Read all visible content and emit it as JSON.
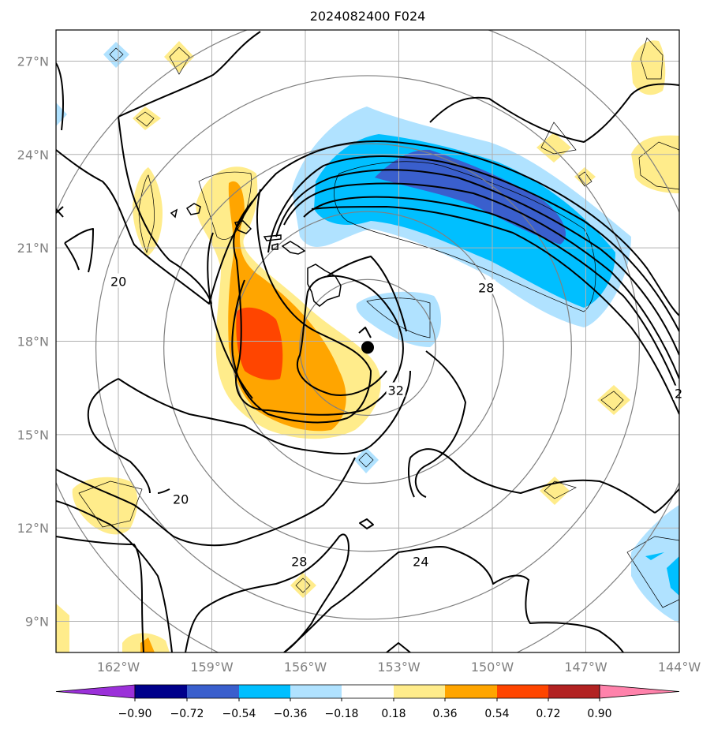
{
  "title": "2024082400 F024",
  "map": {
    "lon_range": [
      -164,
      -144
    ],
    "lat_range": [
      8,
      28
    ],
    "lon_ticks": [
      {
        "value": -162,
        "label": "162°W"
      },
      {
        "value": -159,
        "label": "159°W"
      },
      {
        "value": -156,
        "label": "156°W"
      },
      {
        "value": -153,
        "label": "153°W"
      },
      {
        "value": -150,
        "label": "150°W"
      },
      {
        "value": -147,
        "label": "147°W"
      },
      {
        "value": -144,
        "label": "144°W"
      }
    ],
    "lat_ticks": [
      {
        "value": 27,
        "label": "27°N"
      },
      {
        "value": 24,
        "label": "24°N"
      },
      {
        "value": 21,
        "label": "21°N"
      },
      {
        "value": 18,
        "label": "18°N"
      },
      {
        "value": 15,
        "label": "15°N"
      },
      {
        "value": 12,
        "label": "12°N"
      },
      {
        "value": 9,
        "label": "9°N"
      }
    ],
    "grid": true,
    "storm_center": {
      "lon": -154,
      "lat": 17.8
    },
    "range_rings_deg": [
      2,
      4,
      6,
      8,
      10
    ],
    "contour_labels": [
      {
        "text": "20",
        "lon": -162.0,
        "lat": 19.9
      },
      {
        "text": "28",
        "lon": -150.2,
        "lat": 19.7
      },
      {
        "text": "32",
        "lon": -153.1,
        "lat": 16.4
      },
      {
        "text": "20",
        "lon": -160.0,
        "lat": 12.9
      },
      {
        "text": "28",
        "lon": -156.2,
        "lat": 10.9
      },
      {
        "text": "24",
        "lon": -152.3,
        "lat": 10.9
      },
      {
        "text": "2",
        "lon": -143.9,
        "lat": 16.3
      }
    ]
  },
  "colorbar": {
    "ticks": [
      "−0.90",
      "−0.72",
      "−0.54",
      "−0.36",
      "−0.18",
      "0.18",
      "0.36",
      "0.54",
      "0.72",
      "0.90"
    ],
    "colors": [
      "#9b30d9",
      "#00008b",
      "#3a5fcd",
      "#00bfff",
      "#b0e2ff",
      "#ffffff",
      "#ffec8b",
      "#ffa500",
      "#ff4500",
      "#b22222",
      "#ff82ab"
    ]
  },
  "fill_colors": {
    "neg1": "#b0e2ff",
    "neg2": "#00bfff",
    "neg3": "#3a5fcd",
    "pos1": "#ffec8b",
    "pos2": "#ffa500",
    "pos3": "#ff4500"
  }
}
